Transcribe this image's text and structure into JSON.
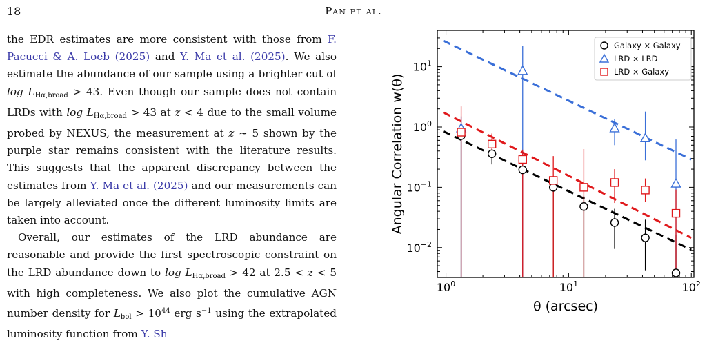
{
  "header": {
    "page_number": "18",
    "running_title": "Pan et al."
  },
  "body_text": {
    "p1_a": "the EDR estimates are more consistent with those from",
    "p1_cite1": "F. Pacucci & A. Loeb (2025)",
    "p1_and": " and ",
    "p1_cite2": "Y. Ma et al. (2025)",
    "p1_b": ". We also estimate the abundance of our sample using a brighter cut of ",
    "p1_math1": "log L",
    "p1_math1_sub": "Hα,broad",
    "p1_c": " > 43. Even though our sample does not contain LRDs with ",
    "p1_math2": "log L",
    "p1_math2_sub": "Hα,broad",
    "p1_d": " > 43 at ",
    "p1_math3": "z",
    "p1_e": " < 4 due to the small volume probed by NEXUS, the measurement at ",
    "p1_math4": "z",
    "p1_f": " ∼ 5 shown by the purple star remains consistent with the literature results. This suggests that the apparent discrepancy between the estimates from ",
    "p1_cite3": "Y. Ma et al. (2025)",
    "p1_g": " and our measurements can be largely alleviated once the different luminosity limits are taken into account.",
    "p2_a": "Overall, our estimates of the LRD abundance are reasonable and provide the first spectroscopic constraint on the LRD abundance down to ",
    "p2_math1": "log L",
    "p2_math1_sub": "Hα,broad",
    "p2_b": " > 42 at 2.5 < ",
    "p2_math2": "z",
    "p2_c": " < 5 with high completeness. We also plot the cumulative AGN number density for ",
    "p2_math3": "L",
    "p2_math3_sub": "bol",
    "p2_d": " > 10",
    "p2_sup": "44",
    "p2_e": " erg s",
    "p2_sup2": "−1",
    "p2_f": " using the extrapolated luminosity function from ",
    "p2_cite": "Y. Sh"
  },
  "chart_data": {
    "type": "scatter",
    "xlabel": "θ (arcsec)",
    "ylabel": "Angular Correlation w(θ)",
    "xscale": "log",
    "yscale": "log",
    "xlim": [
      0.85,
      105
    ],
    "ylim": [
      0.0032,
      40
    ],
    "xticks": [
      {
        "value": 1,
        "label": "10",
        "exp": "0"
      },
      {
        "value": 10,
        "label": "10",
        "exp": "1"
      },
      {
        "value": 100,
        "label": "10",
        "exp": "2"
      }
    ],
    "yticks": [
      {
        "value": 0.01,
        "label": "10",
        "exp": "−2"
      },
      {
        "value": 0.1,
        "label": "10",
        "exp": "−1"
      },
      {
        "value": 1,
        "label": "10",
        "exp": "0"
      },
      {
        "value": 10,
        "label": "10",
        "exp": "1"
      }
    ],
    "legend_position": "top-right",
    "series": [
      {
        "name": "Galaxy × Galaxy",
        "marker": "circle",
        "color": "#000000",
        "x": [
          1.33,
          2.37,
          4.22,
          7.5,
          13.3,
          23.7,
          42.2,
          75
        ],
        "y": [
          0.72,
          0.36,
          0.195,
          0.1,
          0.048,
          0.026,
          0.0145,
          0.0038
        ],
        "yerr_low": [
          0.0032,
          0.24,
          0.0032,
          0.0032,
          0.0032,
          0.0095,
          0.0042,
          0.0032
        ],
        "yerr_high": [
          1.1,
          0.52,
          0.27,
          0.15,
          0.072,
          0.044,
          0.029,
          0.016
        ],
        "fit": {
          "x": [
            0.95,
            100
          ],
          "y": [
            0.85,
            0.0092
          ],
          "color": "#000000"
        }
      },
      {
        "name": "LRD × LRD",
        "marker": "triangle",
        "color": "#3a6fd8",
        "x": [
          1.33,
          4.22,
          23.7,
          42.2,
          75
        ],
        "y": [
          0.95,
          8.5,
          0.95,
          0.65,
          0.115
        ],
        "yerr_low": [
          0.0032,
          0.0032,
          0.5,
          0.28,
          0.0032
        ],
        "yerr_high": [
          1.5,
          22,
          1.35,
          1.8,
          0.62
        ],
        "fit": {
          "x": [
            0.95,
            100
          ],
          "y": [
            27.0,
            0.29
          ],
          "color": "#3a6fd8"
        }
      },
      {
        "name": "LRD × Galaxy",
        "marker": "square",
        "color": "#e0191c",
        "x": [
          1.33,
          2.37,
          4.22,
          7.5,
          13.3,
          23.7,
          42.2,
          75
        ],
        "y": [
          0.82,
          0.52,
          0.29,
          0.13,
          0.1,
          0.12,
          0.09,
          0.037
        ],
        "yerr_low": [
          0.0032,
          0.31,
          0.0032,
          0.0032,
          0.0032,
          0.055,
          0.058,
          0.0032
        ],
        "yerr_high": [
          2.2,
          0.78,
          0.42,
          0.33,
          0.43,
          0.2,
          0.14,
          0.092
        ],
        "fit": {
          "x": [
            0.95,
            100
          ],
          "y": [
            1.75,
            0.0145
          ],
          "color": "#e0191c"
        }
      }
    ]
  }
}
